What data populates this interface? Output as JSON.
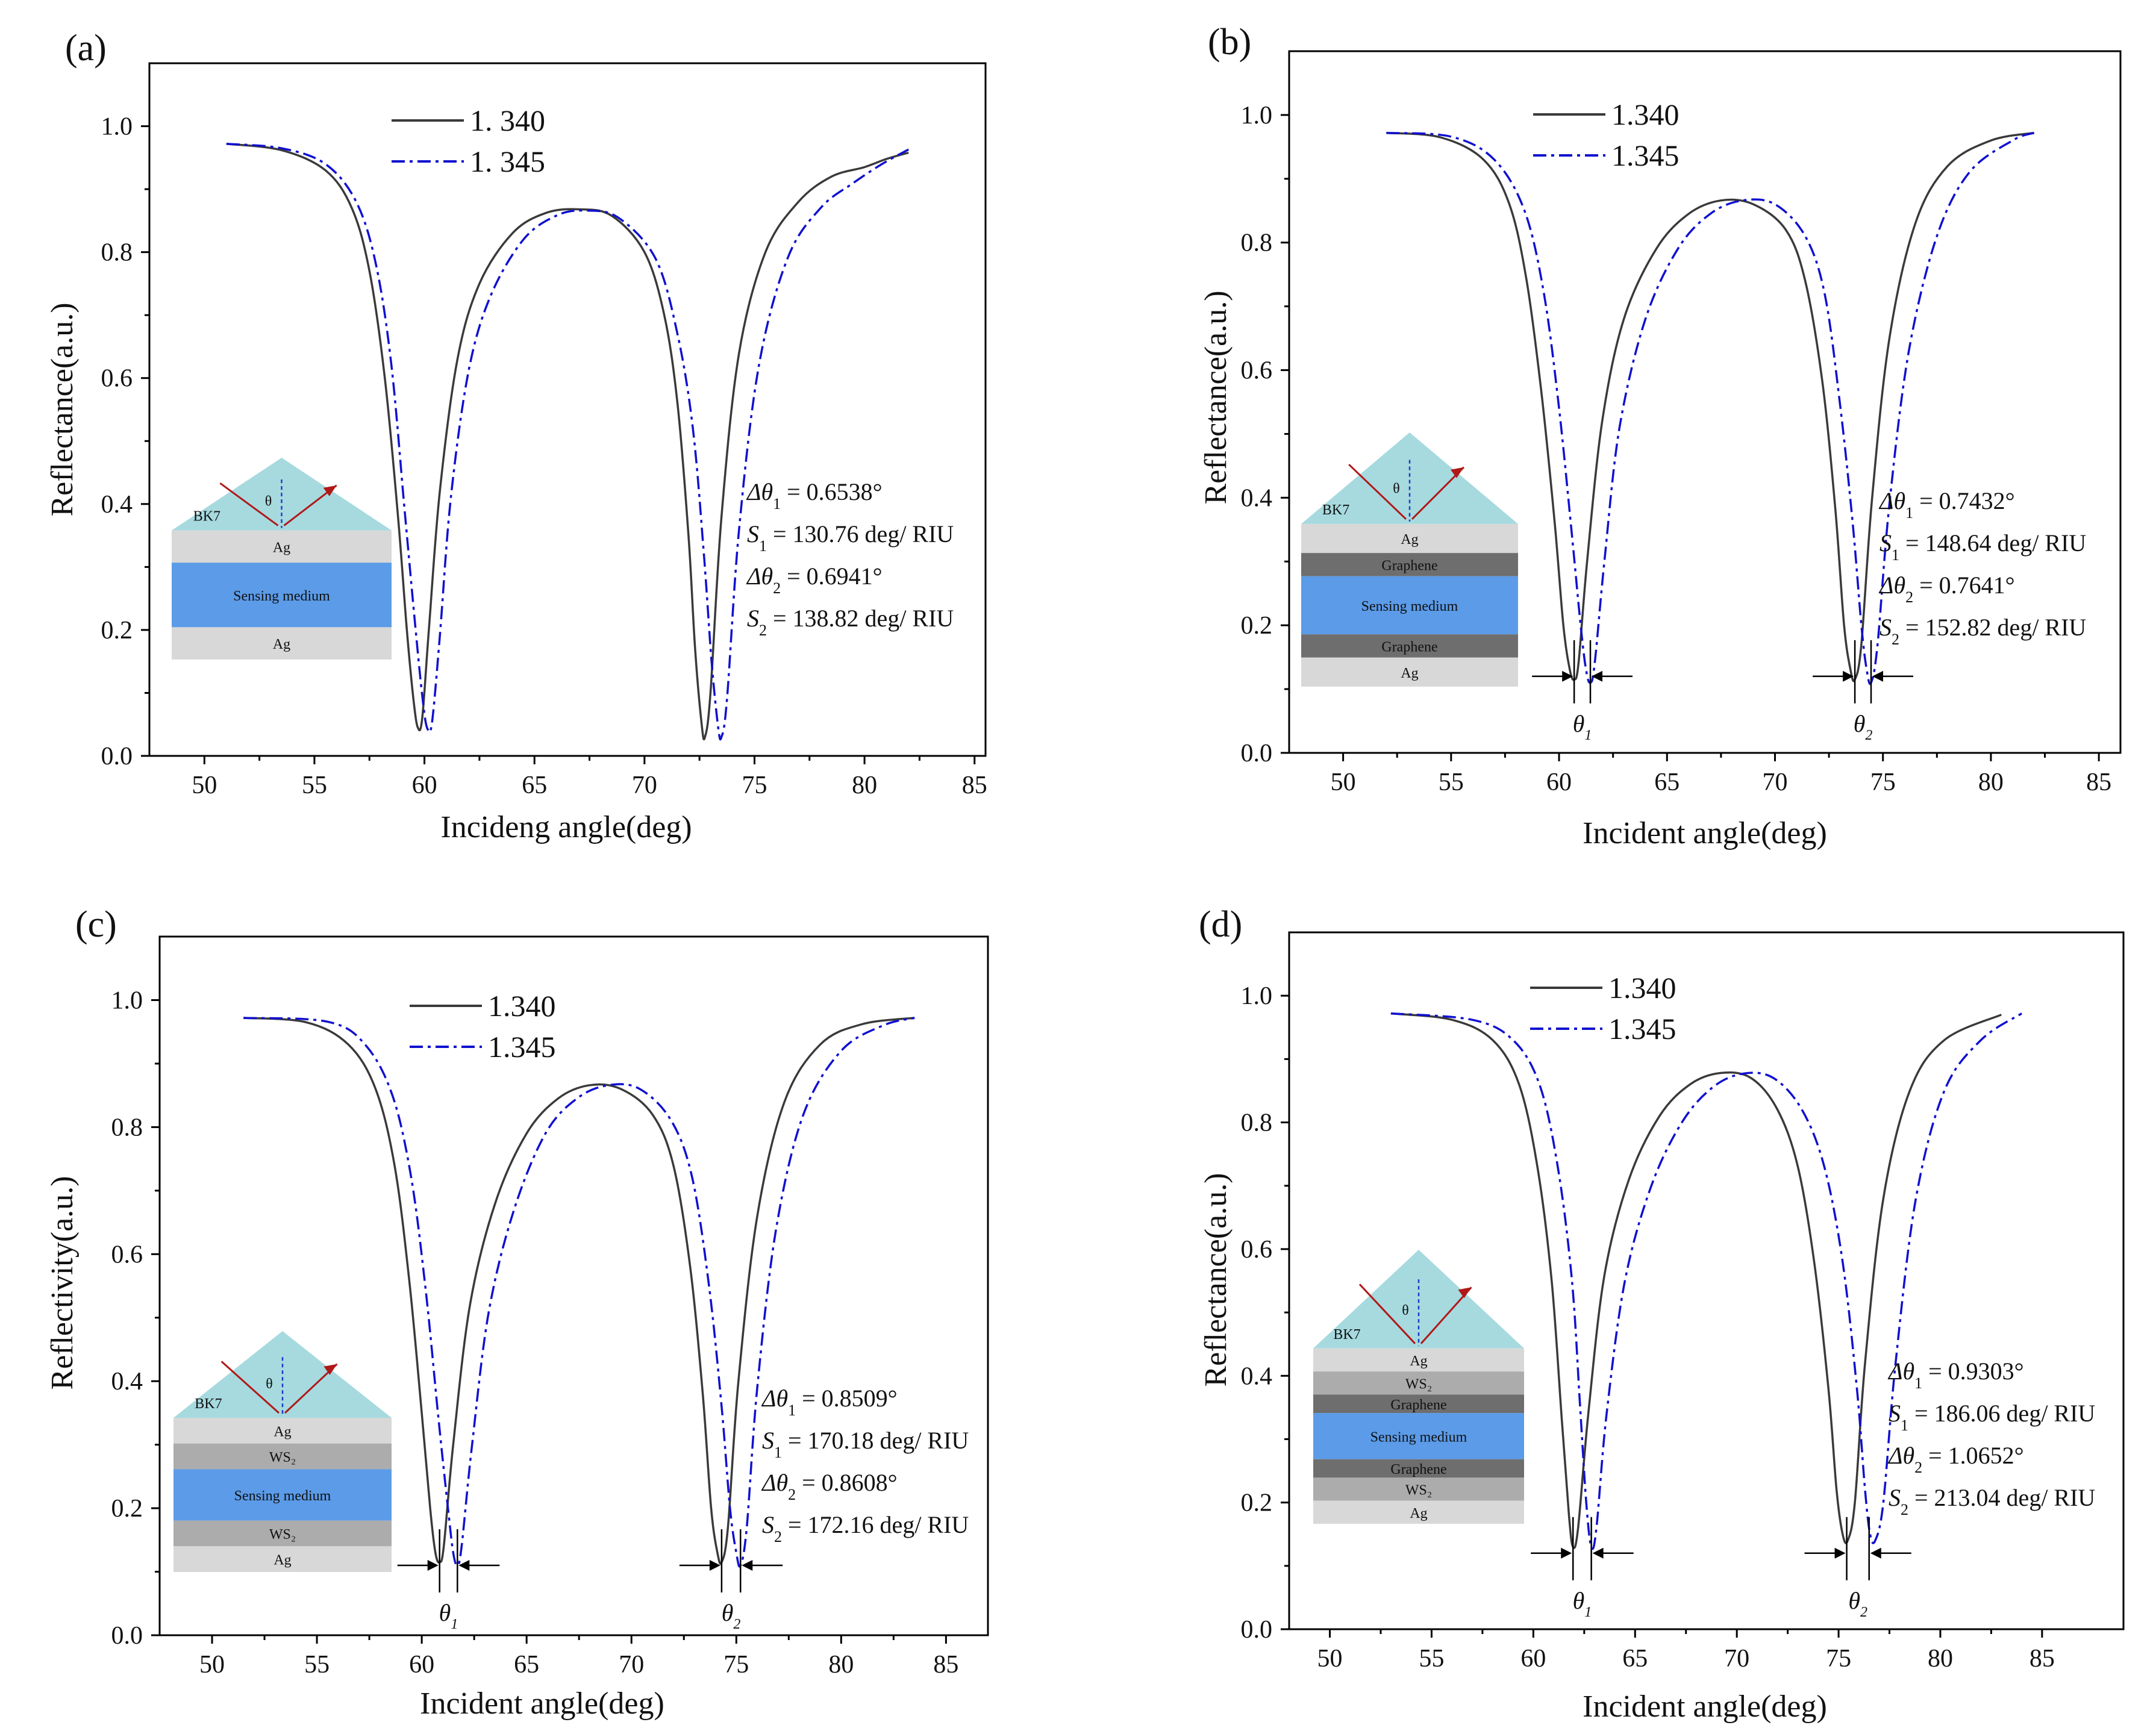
{
  "figure_colors": {
    "series1": "#3a3a3a",
    "series2": "#1010d0",
    "prism": "#a6dadf",
    "layer_ag": "#d8d8d8",
    "layer_graphene": "#6e6e6e",
    "layer_ws2": "#acacac",
    "layer_sensing": "#5b9be8",
    "arrow": "#b01818"
  },
  "chart_data": [
    {
      "type": "line",
      "panel_label": "(a)",
      "xlabel": "Incideng angle(deg)",
      "ylabel": "Reflectance(a.u.)",
      "xlim": [
        47.5,
        85.5
      ],
      "ylim": [
        0.0,
        1.1
      ],
      "xticks": [
        50,
        55,
        60,
        65,
        70,
        75,
        80,
        85
      ],
      "xtick_labels": [
        "50",
        "55",
        "60",
        "65",
        "70",
        "75",
        "80",
        "85"
      ],
      "yticks": [
        0.0,
        0.2,
        0.4,
        0.6,
        0.8,
        1.0
      ],
      "ytick_labels": [
        "0.0",
        "0.2",
        "0.4",
        "0.6",
        "0.8",
        "1.0"
      ],
      "legend": [
        "1. 340",
        "1. 345"
      ],
      "series": [
        {
          "name": "1. 340",
          "style": "solid",
          "x": [
            51,
            53.5,
            55.5,
            56.7,
            57.5,
            58.2,
            58.8,
            59.2,
            59.5,
            59.7,
            59.9,
            60.2,
            60.7,
            61.5,
            62.5,
            64,
            65.5,
            67,
            68.5,
            70,
            70.9,
            71.5,
            72,
            72.3,
            72.6,
            72.75,
            73,
            73.5,
            74.3,
            75.5,
            77,
            78.5,
            80,
            81,
            82
          ],
          "y": [
            0.972,
            0.962,
            0.93,
            0.87,
            0.77,
            0.6,
            0.38,
            0.2,
            0.09,
            0.045,
            0.06,
            0.2,
            0.42,
            0.63,
            0.75,
            0.83,
            0.862,
            0.868,
            0.858,
            0.8,
            0.7,
            0.56,
            0.35,
            0.17,
            0.05,
            0.03,
            0.1,
            0.38,
            0.64,
            0.8,
            0.88,
            0.92,
            0.935,
            0.948,
            0.958
          ]
        },
        {
          "name": "1. 345",
          "style": "dashdot",
          "x": [
            51,
            53.5,
            55.5,
            56.9,
            57.8,
            58.5,
            59.1,
            59.6,
            59.95,
            60.15,
            60.35,
            60.7,
            61.2,
            62,
            63,
            64.5,
            66,
            67.3,
            68.8,
            70.5,
            71.5,
            72.2,
            72.7,
            73.05,
            73.35,
            73.5,
            73.75,
            74.3,
            75.2,
            76.5,
            78,
            79.5,
            80.8,
            82
          ],
          "y": [
            0.972,
            0.965,
            0.94,
            0.88,
            0.78,
            0.62,
            0.39,
            0.2,
            0.08,
            0.042,
            0.055,
            0.19,
            0.41,
            0.61,
            0.73,
            0.82,
            0.858,
            0.866,
            0.855,
            0.79,
            0.67,
            0.52,
            0.32,
            0.15,
            0.045,
            0.03,
            0.09,
            0.36,
            0.62,
            0.79,
            0.87,
            0.91,
            0.94,
            0.963
          ]
        }
      ],
      "annotations": [
        {
          "prefix": "Δθ",
          "sub": "1",
          "rest": " = 0.6538°"
        },
        {
          "prefix": "S",
          "sub": "1",
          "rest": " = 130.76 deg/ RIU"
        },
        {
          "prefix": "Δθ",
          "sub": "2",
          "rest": " = 0.6941°"
        },
        {
          "prefix": "S",
          "sub": "2",
          "rest": " = 138.82 deg/ RIU"
        }
      ],
      "inset": {
        "prism_label": "BK7",
        "angle_label": "θ",
        "layers": [
          {
            "name": "Ag",
            "kind": "ag"
          },
          {
            "name": "Sensing medium",
            "kind": "sensing"
          },
          {
            "name": "Ag",
            "kind": "ag"
          }
        ]
      },
      "markers": []
    },
    {
      "type": "line",
      "panel_label": "(b)",
      "xlabel": "Incident angle(deg)",
      "ylabel": "Reflectance(a.u.)",
      "xlim": [
        47.5,
        86.0
      ],
      "ylim": [
        0.0,
        1.1
      ],
      "xticks": [
        50,
        55,
        60,
        65,
        70,
        75,
        80,
        85
      ],
      "xtick_labels": [
        "50",
        "55",
        "60",
        "65",
        "70",
        "75",
        "80",
        "85"
      ],
      "yticks": [
        0.0,
        0.2,
        0.4,
        0.6,
        0.8,
        1.0
      ],
      "ytick_labels": [
        "0.0",
        "0.2",
        "0.4",
        "0.6",
        "0.8",
        "1.0"
      ],
      "legend": [
        "1.340",
        "1.345"
      ],
      "series": [
        {
          "name": "1.340",
          "style": "solid",
          "x": [
            52,
            54.5,
            56.5,
            57.7,
            58.5,
            59.2,
            59.8,
            60.2,
            60.5,
            60.7,
            60.9,
            61.3,
            62,
            63,
            64.5,
            66,
            67.5,
            69,
            70.5,
            71.4,
            72.2,
            72.8,
            73.2,
            73.5,
            73.7,
            74,
            74.5,
            75.3,
            76.5,
            78,
            80,
            82
          ],
          "y": [
            0.972,
            0.965,
            0.93,
            0.86,
            0.74,
            0.56,
            0.36,
            0.2,
            0.13,
            0.115,
            0.14,
            0.3,
            0.52,
            0.68,
            0.79,
            0.845,
            0.866,
            0.86,
            0.82,
            0.74,
            0.58,
            0.38,
            0.2,
            0.13,
            0.115,
            0.17,
            0.4,
            0.65,
            0.83,
            0.92,
            0.96,
            0.972
          ]
        },
        {
          "name": "1.345",
          "style": "dashdot",
          "x": [
            52,
            55,
            57,
            58.4,
            59.3,
            60,
            60.6,
            61,
            61.25,
            61.45,
            61.65,
            62.1,
            62.8,
            64,
            65.5,
            67,
            68.5,
            70,
            71.4,
            72.3,
            73,
            73.6,
            74,
            74.25,
            74.45,
            74.75,
            75.3,
            76.2,
            77.5,
            79,
            81,
            82
          ],
          "y": [
            0.972,
            0.966,
            0.93,
            0.85,
            0.72,
            0.54,
            0.34,
            0.2,
            0.13,
            0.11,
            0.14,
            0.3,
            0.51,
            0.68,
            0.79,
            0.845,
            0.866,
            0.86,
            0.81,
            0.72,
            0.55,
            0.36,
            0.2,
            0.13,
            0.11,
            0.17,
            0.39,
            0.63,
            0.81,
            0.91,
            0.96,
            0.972
          ]
        }
      ],
      "annotations": [
        {
          "prefix": "Δθ",
          "sub": "1",
          "rest": " = 0.7432°"
        },
        {
          "prefix": "S",
          "sub": "1",
          "rest": " = 148.64 deg/ RIU"
        },
        {
          "prefix": "Δθ",
          "sub": "2",
          "rest": " = 0.7641°"
        },
        {
          "prefix": "S",
          "sub": "2",
          "rest": " = 152.82 deg/ RIU"
        }
      ],
      "inset": {
        "prism_label": "BK7",
        "angle_label": "θ",
        "layers": [
          {
            "name": "Ag",
            "kind": "ag"
          },
          {
            "name": "Graphene",
            "kind": "graphene"
          },
          {
            "name": "Sensing medium",
            "kind": "sensing"
          },
          {
            "name": "Graphene",
            "kind": "graphene"
          },
          {
            "name": "Ag",
            "kind": "ag"
          }
        ]
      },
      "markers": [
        {
          "label": "θ",
          "sub": "1",
          "x1": 60.7,
          "x2": 61.45,
          "y": 0.12
        },
        {
          "label": "θ",
          "sub": "2",
          "x1": 73.7,
          "x2": 74.45,
          "y": 0.12
        }
      ]
    },
    {
      "type": "line",
      "panel_label": "(c)",
      "xlabel": "Incident  angle(deg)",
      "ylabel": "Reflectivity(a.u.)",
      "xlim": [
        47.5,
        87.0
      ],
      "ylim": [
        0.0,
        1.1
      ],
      "xticks": [
        50,
        55,
        60,
        65,
        70,
        75,
        80,
        85
      ],
      "xtick_labels": [
        "50",
        "55",
        "60",
        "65",
        "70",
        "75",
        "80",
        "85"
      ],
      "yticks": [
        0.0,
        0.2,
        0.4,
        0.6,
        0.8,
        1.0
      ],
      "ytick_labels": [
        "0.0",
        "0.2",
        "0.4",
        "0.6",
        "0.8",
        "1.0"
      ],
      "legend": [
        "1.340",
        "1.345"
      ],
      "series": [
        {
          "name": "1.340",
          "style": "solid",
          "x": [
            51.5,
            54.5,
            56.5,
            57.8,
            58.7,
            59.4,
            60,
            60.4,
            60.65,
            60.85,
            61.05,
            61.5,
            62.3,
            63.5,
            65,
            66.5,
            68,
            69.5,
            71,
            72,
            72.8,
            73.4,
            73.8,
            74.1,
            74.3,
            74.6,
            75.1,
            76,
            77.3,
            79,
            81,
            83.5
          ],
          "y": [
            0.972,
            0.965,
            0.93,
            0.86,
            0.74,
            0.56,
            0.35,
            0.2,
            0.13,
            0.115,
            0.14,
            0.3,
            0.52,
            0.68,
            0.79,
            0.845,
            0.866,
            0.86,
            0.82,
            0.74,
            0.58,
            0.38,
            0.2,
            0.13,
            0.115,
            0.17,
            0.4,
            0.66,
            0.84,
            0.93,
            0.962,
            0.972
          ]
        },
        {
          "name": "1.345",
          "style": "dashdot",
          "x": [
            51.5,
            55.5,
            57.3,
            58.6,
            59.5,
            60.2,
            60.8,
            61.25,
            61.5,
            61.7,
            61.9,
            62.4,
            63.2,
            64.4,
            65.9,
            67.4,
            68.9,
            70.4,
            71.9,
            72.9,
            73.7,
            74.3,
            74.7,
            75,
            75.2,
            75.5,
            76,
            76.9,
            78.2,
            80,
            82,
            83.5
          ],
          "y": [
            0.972,
            0.966,
            0.93,
            0.85,
            0.72,
            0.54,
            0.34,
            0.2,
            0.13,
            0.11,
            0.14,
            0.3,
            0.51,
            0.67,
            0.79,
            0.845,
            0.866,
            0.86,
            0.81,
            0.72,
            0.55,
            0.36,
            0.2,
            0.13,
            0.11,
            0.17,
            0.39,
            0.64,
            0.82,
            0.92,
            0.96,
            0.972
          ]
        }
      ],
      "annotations": [
        {
          "prefix": "Δθ",
          "sub": "1",
          "rest": " = 0.8509°"
        },
        {
          "prefix": "S",
          "sub": "1",
          "rest": " = 170.18 deg/ RIU"
        },
        {
          "prefix": "Δθ",
          "sub": "2",
          "rest": " = 0.8608°"
        },
        {
          "prefix": "S",
          "sub": "2",
          "rest": " = 172.16 deg/ RIU"
        }
      ],
      "inset": {
        "prism_label": "BK7",
        "angle_label": "θ",
        "layers": [
          {
            "name": "Ag",
            "kind": "ag"
          },
          {
            "name": "WS₂",
            "kind": "ws2"
          },
          {
            "name": "Sensing medium",
            "kind": "sensing"
          },
          {
            "name": "WS₂",
            "kind": "ws2"
          },
          {
            "name": "Ag",
            "kind": "ag"
          }
        ]
      },
      "markers": [
        {
          "label": "θ",
          "sub": "1",
          "x1": 60.85,
          "x2": 61.7,
          "y": 0.11
        },
        {
          "label": "θ",
          "sub": "2",
          "x1": 74.3,
          "x2": 75.2,
          "y": 0.11
        }
      ]
    },
    {
      "type": "line",
      "panel_label": "(d)",
      "xlabel": "Incident angle(deg)",
      "ylabel": "Reflectance(a.u.)",
      "xlim": [
        48.0,
        89.0
      ],
      "ylim": [
        0.0,
        1.1
      ],
      "xticks": [
        50,
        55,
        60,
        65,
        70,
        75,
        80,
        85
      ],
      "xtick_labels": [
        "50",
        "55",
        "60",
        "65",
        "70",
        "75",
        "80",
        "85"
      ],
      "yticks": [
        0.0,
        0.2,
        0.4,
        0.6,
        0.8,
        1.0
      ],
      "ytick_labels": [
        "0.0",
        "0.2",
        "0.4",
        "0.6",
        "0.8",
        "1.0"
      ],
      "legend": [
        "1.340",
        "1.345"
      ],
      "series": [
        {
          "name": "1.340",
          "style": "solid",
          "x": [
            53,
            56,
            58,
            59.3,
            60.2,
            60.9,
            61.4,
            61.75,
            61.95,
            62.2,
            62.7,
            63.5,
            64.7,
            66.2,
            67.7,
            69.2,
            70.7,
            72,
            73,
            73.8,
            74.5,
            74.9,
            75.2,
            75.45,
            75.8,
            76.3,
            77.2,
            78.5,
            80.2,
            83
          ],
          "y": [
            0.972,
            0.962,
            0.93,
            0.86,
            0.73,
            0.55,
            0.33,
            0.18,
            0.13,
            0.16,
            0.34,
            0.56,
            0.71,
            0.81,
            0.86,
            0.878,
            0.87,
            0.82,
            0.73,
            0.58,
            0.38,
            0.22,
            0.15,
            0.14,
            0.2,
            0.42,
            0.68,
            0.85,
            0.93,
            0.97
          ]
        },
        {
          "name": "1.345",
          "style": "dashdot",
          "x": [
            53,
            57,
            59,
            60.3,
            61.2,
            61.9,
            62.3,
            62.6,
            62.85,
            63.1,
            63.6,
            64.5,
            65.8,
            67.3,
            68.8,
            70.3,
            71.8,
            73.2,
            74.3,
            75.2,
            75.9,
            76.3,
            76.55,
            76.8,
            77.2,
            77.8,
            78.8,
            80.2,
            82,
            84
          ],
          "y": [
            0.972,
            0.962,
            0.93,
            0.86,
            0.73,
            0.55,
            0.35,
            0.2,
            0.13,
            0.16,
            0.34,
            0.55,
            0.7,
            0.8,
            0.855,
            0.877,
            0.87,
            0.82,
            0.73,
            0.58,
            0.38,
            0.22,
            0.15,
            0.14,
            0.2,
            0.42,
            0.68,
            0.85,
            0.93,
            0.972
          ]
        }
      ],
      "annotations": [
        {
          "prefix": "Δθ",
          "sub": "1",
          "rest": " = 0.9303°"
        },
        {
          "prefix": "S",
          "sub": "1",
          "rest": " = 186.06 deg/ RIU"
        },
        {
          "prefix": "Δθ",
          "sub": "2",
          "rest": " = 1.0652°"
        },
        {
          "prefix": "S",
          "sub": "2",
          "rest": " = 213.04 deg/ RIU"
        }
      ],
      "inset": {
        "prism_label": "BK7",
        "angle_label": "θ",
        "layers": [
          {
            "name": "Ag",
            "kind": "ag"
          },
          {
            "name": "WS₂",
            "kind": "ws2"
          },
          {
            "name": "Graphene",
            "kind": "graphene"
          },
          {
            "name": "Sensing medium",
            "kind": "sensing"
          },
          {
            "name": "Graphene",
            "kind": "graphene"
          },
          {
            "name": "WS₂",
            "kind": "ws2"
          },
          {
            "name": "Ag",
            "kind": "ag"
          }
        ]
      },
      "markers": [
        {
          "label": "θ",
          "sub": "1",
          "x1": 61.95,
          "x2": 62.85,
          "y": 0.12
        },
        {
          "label": "θ",
          "sub": "2",
          "x1": 75.4,
          "x2": 76.5,
          "y": 0.12
        }
      ]
    }
  ]
}
